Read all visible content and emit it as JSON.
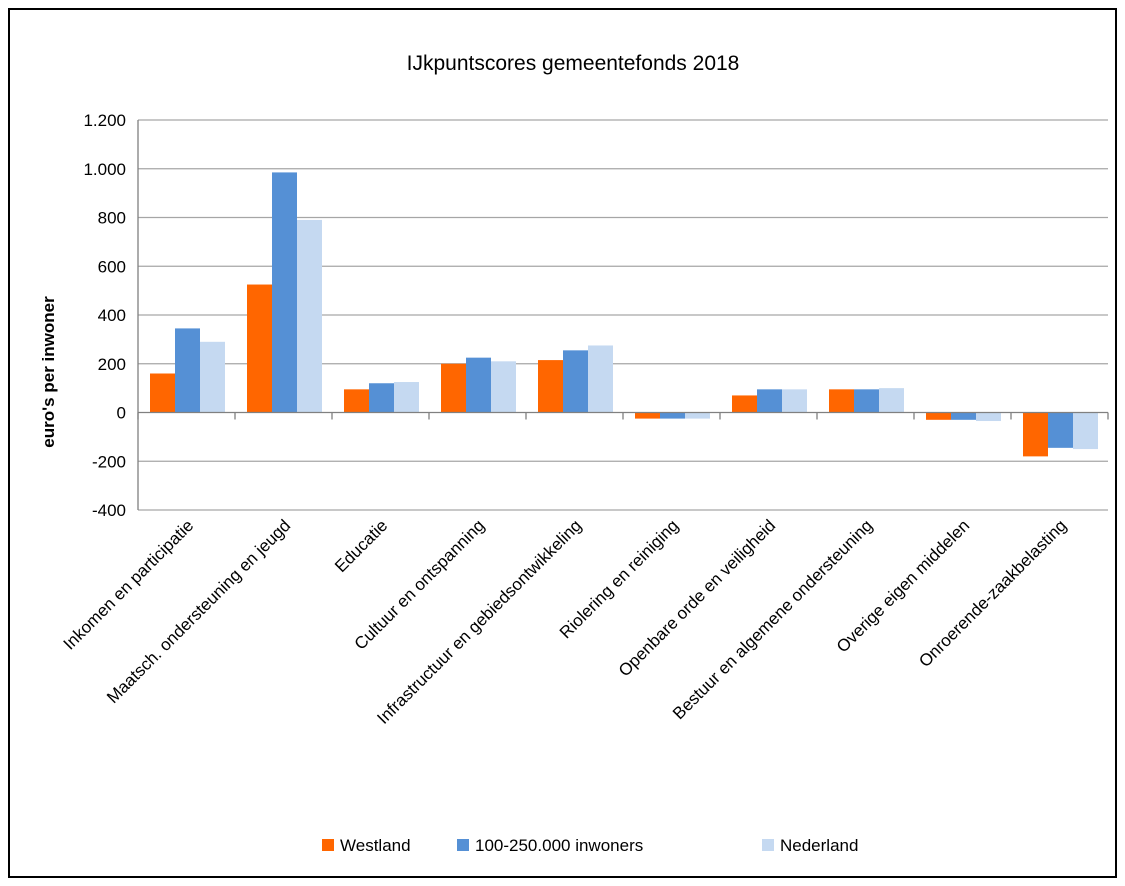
{
  "chart_data": {
    "type": "bar",
    "title": "IJkpuntscores gemeentefonds 2018",
    "xlabel": "",
    "ylabel": "euro's per inwoner",
    "ylim": [
      -400,
      1200
    ],
    "yticks": [
      1200,
      1000,
      800,
      600,
      400,
      200,
      0,
      -200,
      -400
    ],
    "ytick_labels": [
      "1.200",
      "1.000",
      "800",
      "600",
      "400",
      "200",
      "0",
      "-200",
      "-400"
    ],
    "grid": true,
    "legend_position": "bottom",
    "categories": [
      "Inkomen en participatie",
      "Maatsch. ondersteuning en jeugd",
      "Educatie",
      "Cultuur en ontspanning",
      "Infrastructuur en gebiedsontwikkeling",
      "Riolering en reiniging",
      "Openbare orde en veiligheid",
      "Bestuur en algemene ondersteuning",
      "Overige eigen middelen",
      "Onroerende-zaakbelasting"
    ],
    "series": [
      {
        "name": "Westland",
        "color": "#ff6600",
        "values": [
          160,
          525,
          95,
          200,
          215,
          -25,
          70,
          95,
          -30,
          -180
        ]
      },
      {
        "name": "100-250.000 inwoners",
        "color": "#5590d5",
        "values": [
          345,
          985,
          120,
          225,
          255,
          -25,
          95,
          95,
          -30,
          -145
        ]
      },
      {
        "name": "Nederland",
        "color": "#c5d9f1",
        "values": [
          290,
          790,
          125,
          210,
          275,
          -25,
          95,
          100,
          -35,
          -150
        ]
      }
    ]
  }
}
